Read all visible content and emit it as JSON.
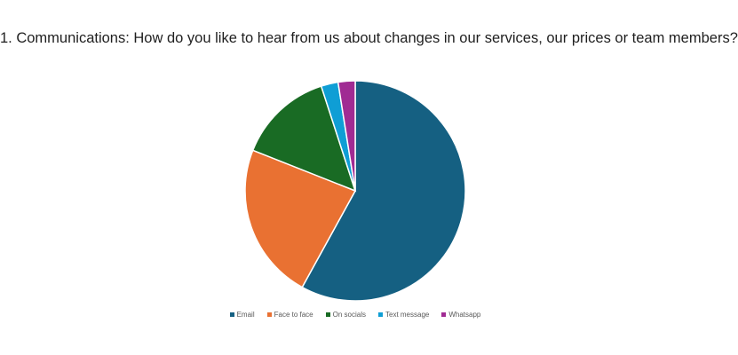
{
  "chart_data": {
    "type": "pie",
    "title": "1. Communications: How do you like to hear from us about changes in our services, our prices or team members?",
    "categories": [
      "Email",
      "Face to face",
      "On socials",
      "Text message",
      "Whatsapp"
    ],
    "values": [
      58,
      23,
      14,
      2.5,
      2.5
    ],
    "colors": [
      "#156082",
      "#e97132",
      "#196b24",
      "#0f9ed5",
      "#a02b93"
    ],
    "legend_position": "bottom"
  }
}
